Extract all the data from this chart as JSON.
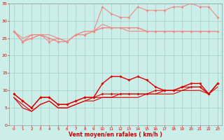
{
  "x": [
    0,
    1,
    2,
    3,
    4,
    5,
    6,
    7,
    8,
    9,
    10,
    11,
    12,
    13,
    14,
    15,
    16,
    17,
    18,
    19,
    20,
    21,
    22,
    23
  ],
  "series_light": [
    [
      27,
      25,
      26,
      26,
      26,
      25,
      24,
      26,
      27,
      27,
      28,
      28,
      28,
      28,
      28,
      27,
      27,
      27,
      27,
      27,
      27,
      27,
      27,
      27
    ],
    [
      27,
      24,
      26,
      26,
      24,
      25,
      24,
      26,
      26,
      27,
      28,
      28,
      28,
      28,
      28,
      27,
      27,
      27,
      27,
      27,
      27,
      27,
      27,
      27
    ],
    [
      27,
      24,
      25,
      26,
      25,
      24,
      24,
      26,
      26,
      27,
      34,
      32,
      31,
      31,
      34,
      33,
      33,
      33,
      34,
      34,
      35,
      34,
      34,
      31
    ],
    [
      27,
      24,
      25,
      26,
      25,
      24,
      24,
      26,
      27,
      27,
      29,
      28,
      28,
      27,
      27,
      27,
      27,
      27,
      27,
      27,
      27,
      27,
      27,
      27
    ]
  ],
  "series_dark": [
    [
      9,
      7,
      5,
      8,
      8,
      6,
      6,
      7,
      8,
      8,
      12,
      14,
      14,
      13,
      14,
      13,
      11,
      10,
      10,
      11,
      12,
      12,
      9,
      12
    ],
    [
      9,
      7,
      5,
      8,
      8,
      6,
      6,
      7,
      8,
      8,
      9,
      9,
      9,
      9,
      9,
      9,
      10,
      10,
      10,
      11,
      11,
      11,
      9,
      12
    ],
    [
      8,
      6,
      4,
      6,
      7,
      5,
      5,
      6,
      7,
      8,
      8,
      8,
      9,
      9,
      9,
      9,
      9,
      10,
      10,
      10,
      11,
      11,
      9,
      12
    ],
    [
      8,
      5,
      4,
      6,
      7,
      5,
      5,
      6,
      7,
      7,
      8,
      8,
      8,
      8,
      8,
      9,
      9,
      9,
      9,
      10,
      10,
      10,
      9,
      11
    ]
  ],
  "light_color": "#f08888",
  "dark_color": "#dd0000",
  "bg_color": "#cceee8",
  "grid_color": "#a8cccc",
  "xlabel": "Vent moyen/en rafales ( km/h )",
  "xlim": [
    0,
    23
  ],
  "ylim": [
    0,
    35
  ],
  "yticks": [
    0,
    5,
    10,
    15,
    20,
    25,
    30,
    35
  ],
  "xticks": [
    0,
    1,
    2,
    3,
    4,
    5,
    6,
    7,
    8,
    9,
    10,
    11,
    12,
    13,
    14,
    15,
    16,
    17,
    18,
    19,
    20,
    21,
    22,
    23
  ]
}
